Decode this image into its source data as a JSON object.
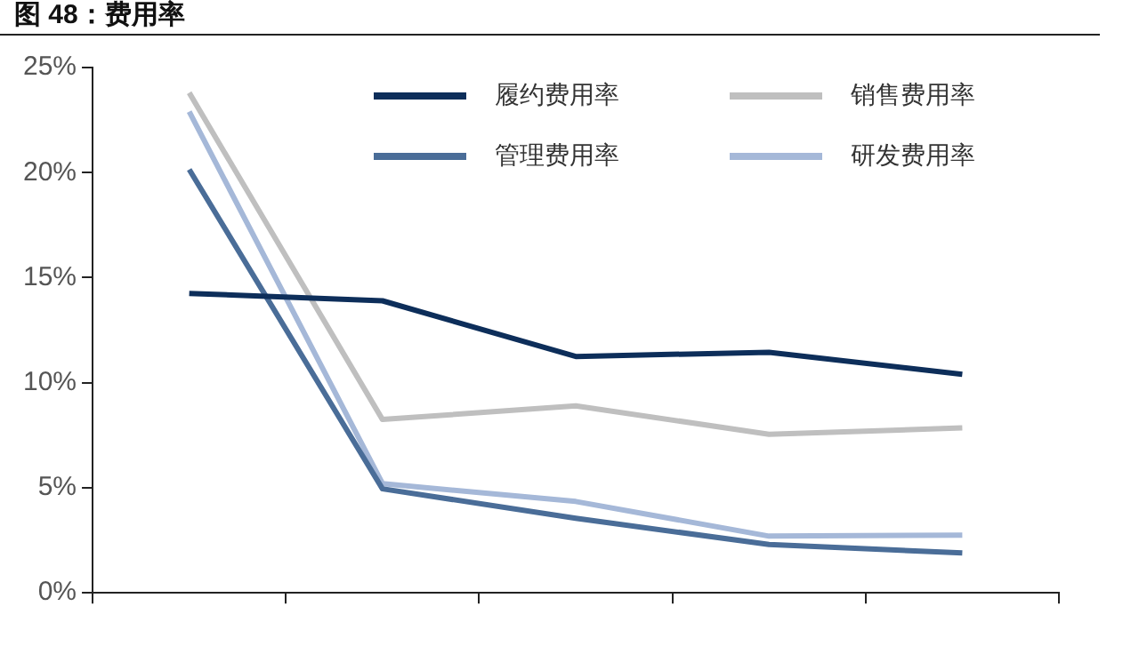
{
  "chart_data": {
    "type": "line",
    "title": "图 48：费用率",
    "categories": [
      null,
      null,
      null,
      null,
      null
    ],
    "series": [
      {
        "name": "履约费用率",
        "color": "#0d2e5a",
        "values": [
          14.25,
          13.9,
          11.25,
          11.45,
          10.4
        ]
      },
      {
        "name": "销售费用率",
        "color": "#bfbfbf",
        "values": [
          23.8,
          8.25,
          8.9,
          7.55,
          7.85
        ]
      },
      {
        "name": "管理费用率",
        "color": "#4a6d98",
        "values": [
          20.15,
          4.95,
          3.55,
          2.3,
          1.9
        ]
      },
      {
        "name": "研发费用率",
        "color": "#a5b8d8",
        "values": [
          22.9,
          5.2,
          4.35,
          2.7,
          2.75
        ]
      }
    ],
    "ylim": [
      0,
      25
    ],
    "yticks": [
      {
        "value": 0,
        "label": "0%"
      },
      {
        "value": 5,
        "label": "5%"
      },
      {
        "value": 10,
        "label": "10%"
      },
      {
        "value": 15,
        "label": "15%"
      },
      {
        "value": 20,
        "label": "20%"
      },
      {
        "value": 25,
        "label": "25%"
      }
    ],
    "grid": false,
    "legend": "top right",
    "marker": "none",
    "line_style": "solid"
  }
}
